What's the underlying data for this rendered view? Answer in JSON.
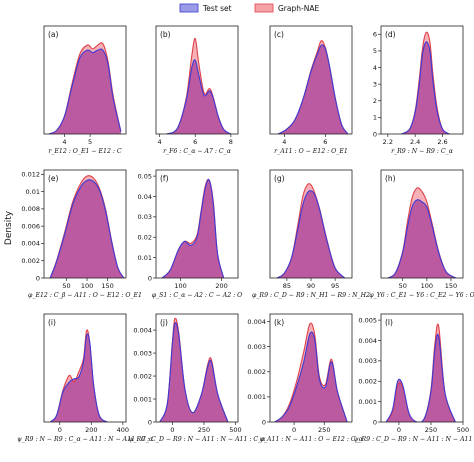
{
  "figure": {
    "ylabel": "Density",
    "legend": [
      {
        "label": "Test set",
        "stroke": "#3b3bd6",
        "fill": "#9a9ae6"
      },
      {
        "label": "Graph-NAE",
        "stroke": "#e0404a",
        "fill": "#f3a3a8"
      }
    ],
    "overlap_color": "#b04a9e"
  },
  "chart_data": [
    {
      "type": "area",
      "panel_label": "(a)",
      "xlabel": "r_E12 : O_E1 − E12 : C",
      "xlim": [
        3.2,
        6.4
      ],
      "ylim": [
        0,
        0.85
      ],
      "xticks": [
        4,
        5
      ],
      "yticks": [],
      "x": [
        3.4,
        3.7,
        4.0,
        4.3,
        4.6,
        4.9,
        5.1,
        5.3,
        5.5,
        5.7,
        5.9,
        6.2
      ],
      "series": [
        {
          "name": "Test set",
          "values": [
            0.0,
            0.03,
            0.14,
            0.38,
            0.6,
            0.66,
            0.64,
            0.66,
            0.66,
            0.55,
            0.28,
            0.02
          ]
        },
        {
          "name": "Graph-NAE",
          "values": [
            0.0,
            0.03,
            0.14,
            0.4,
            0.63,
            0.7,
            0.67,
            0.7,
            0.71,
            0.57,
            0.3,
            0.02
          ]
        }
      ]
    },
    {
      "type": "area",
      "panel_label": "(b)",
      "xlabel": "r_F6 : C_α − A7 : C_α",
      "xlim": [
        3.8,
        8.4
      ],
      "ylim": [
        0,
        0.95
      ],
      "xticks": [
        4,
        6,
        8
      ],
      "yticks": [],
      "x": [
        4.4,
        5.0,
        5.5,
        5.8,
        6.0,
        6.2,
        6.5,
        6.8,
        7.0,
        7.3,
        7.6,
        8.0
      ],
      "series": [
        {
          "name": "Test set",
          "values": [
            0.0,
            0.05,
            0.3,
            0.58,
            0.65,
            0.52,
            0.34,
            0.38,
            0.32,
            0.15,
            0.04,
            0.0
          ]
        },
        {
          "name": "Graph-NAE",
          "values": [
            0.0,
            0.05,
            0.32,
            0.68,
            0.84,
            0.62,
            0.36,
            0.4,
            0.33,
            0.15,
            0.04,
            0.0
          ]
        }
      ]
    },
    {
      "type": "area",
      "panel_label": "(c)",
      "xlabel": "r_A11 : O − E12 : O_E1",
      "xlim": [
        3.3,
        7.3
      ],
      "ylim": [
        0,
        0.95
      ],
      "xticks": [
        4,
        6
      ],
      "yticks": [],
      "x": [
        3.7,
        4.1,
        4.5,
        4.9,
        5.3,
        5.6,
        5.8,
        6.0,
        6.2,
        6.5,
        6.8,
        7.1
      ],
      "series": [
        {
          "name": "Test set",
          "values": [
            0.0,
            0.04,
            0.12,
            0.3,
            0.55,
            0.7,
            0.78,
            0.75,
            0.6,
            0.3,
            0.08,
            0.0
          ]
        },
        {
          "name": "Graph-NAE",
          "values": [
            0.0,
            0.04,
            0.12,
            0.3,
            0.56,
            0.72,
            0.82,
            0.76,
            0.6,
            0.3,
            0.08,
            0.0
          ]
        }
      ]
    },
    {
      "type": "area",
      "panel_label": "(d)",
      "xlabel": "r_R9 : N − R9 : C_α",
      "xlim": [
        2.15,
        2.75
      ],
      "ylim": [
        0,
        6.5
      ],
      "xticks": [
        2.2,
        2.4,
        2.6
      ],
      "yticks": [
        0,
        1,
        2,
        3,
        4,
        5,
        6
      ],
      "x": [
        2.3,
        2.36,
        2.4,
        2.43,
        2.45,
        2.47,
        2.49,
        2.51,
        2.53,
        2.56,
        2.6,
        2.65
      ],
      "series": [
        {
          "name": "Test set",
          "values": [
            0.0,
            0.3,
            1.3,
            3.0,
            4.6,
            5.4,
            5.5,
            4.9,
            3.2,
            1.4,
            0.3,
            0.0
          ]
        },
        {
          "name": "Graph-NAE",
          "values": [
            0.0,
            0.3,
            1.4,
            3.3,
            4.9,
            5.9,
            6.1,
            5.4,
            3.6,
            1.6,
            0.3,
            0.0
          ]
        }
      ]
    },
    {
      "type": "area",
      "panel_label": "(e)",
      "xlabel": "φ_E12 : C_β − A11 : O − E12 : O_E1",
      "xlim": [
        -5,
        195
      ],
      "ylim": [
        0,
        0.0125
      ],
      "xticks": [
        50,
        100,
        150
      ],
      "yticks": [
        0,
        0.002,
        0.004,
        0.006,
        0.008,
        0.01,
        0.012
      ],
      "x": [
        10,
        25,
        45,
        65,
        85,
        100,
        115,
        130,
        145,
        160,
        175,
        190
      ],
      "series": [
        {
          "name": "Test set",
          "values": [
            0.0,
            0.0018,
            0.005,
            0.0085,
            0.0106,
            0.0113,
            0.0112,
            0.0102,
            0.0078,
            0.0042,
            0.0012,
            0.0
          ]
        },
        {
          "name": "Graph-NAE",
          "values": [
            0.0,
            0.0019,
            0.0052,
            0.0088,
            0.011,
            0.0118,
            0.0116,
            0.0104,
            0.008,
            0.0043,
            0.0012,
            0.0
          ]
        }
      ]
    },
    {
      "type": "area",
      "panel_label": "(f)",
      "xlabel": "φ_S1 : C_α − A2 : C − A2 : O",
      "xlim": [
        40,
        240
      ],
      "ylim": [
        0,
        0.053
      ],
      "xticks": [
        100,
        200
      ],
      "yticks": [
        0,
        0.01,
        0.02,
        0.03,
        0.04,
        0.05
      ],
      "x": [
        55,
        75,
        95,
        110,
        125,
        140,
        150,
        160,
        170,
        180,
        190,
        205
      ],
      "series": [
        {
          "name": "Test set",
          "values": [
            0.0,
            0.004,
            0.014,
            0.018,
            0.016,
            0.02,
            0.032,
            0.044,
            0.048,
            0.036,
            0.012,
            0.0
          ]
        },
        {
          "name": "Graph-NAE",
          "values": [
            0.0,
            0.004,
            0.014,
            0.018,
            0.017,
            0.021,
            0.033,
            0.045,
            0.048,
            0.037,
            0.012,
            0.0
          ]
        }
      ]
    },
    {
      "type": "area",
      "panel_label": "(g)",
      "xlabel": "φ_R9 : C_D − R9 : N_H1 − R9 : N_H2",
      "xlim": [
        81.5,
        98.5
      ],
      "ylim": [
        0,
        0.13
      ],
      "xticks": [
        85,
        90,
        95
      ],
      "yticks": [],
      "x": [
        83,
        84.5,
        86,
        87.3,
        88.3,
        89.2,
        90.0,
        90.8,
        91.8,
        93.3,
        95,
        97
      ],
      "series": [
        {
          "name": "Test set",
          "values": [
            0.0,
            0.006,
            0.025,
            0.06,
            0.088,
            0.102,
            0.105,
            0.1,
            0.082,
            0.045,
            0.012,
            0.0
          ]
        },
        {
          "name": "Graph-NAE",
          "values": [
            0.0,
            0.006,
            0.025,
            0.065,
            0.098,
            0.112,
            0.112,
            0.102,
            0.083,
            0.046,
            0.012,
            0.0
          ]
        }
      ]
    },
    {
      "type": "area",
      "panel_label": "(h)",
      "xlabel": "φ_Y6 : C_E1 − Y6 : C_E2 − Y6 : O",
      "xlim": [
        5,
        175
      ],
      "ylim": [
        0,
        0.021
      ],
      "xticks": [
        50,
        100,
        150
      ],
      "yticks": [],
      "x": [
        20,
        35,
        50,
        60,
        70,
        80,
        90,
        100,
        110,
        125,
        140,
        160
      ],
      "series": [
        {
          "name": "Test set",
          "values": [
            0.0,
            0.001,
            0.005,
            0.01,
            0.014,
            0.0152,
            0.0148,
            0.0138,
            0.0105,
            0.0048,
            0.0012,
            0.0
          ]
        },
        {
          "name": "Graph-NAE",
          "values": [
            0.0,
            0.001,
            0.0052,
            0.011,
            0.0158,
            0.0175,
            0.0168,
            0.0148,
            0.011,
            0.005,
            0.0012,
            0.0
          ]
        }
      ]
    },
    {
      "type": "area",
      "panel_label": "(i)",
      "xlabel": "ψ_R9 : N − R9 : C_α − A11 : N − A11 : C_α",
      "xlim": [
        -100,
        420
      ],
      "ylim": [
        0,
        0.0065
      ],
      "xticks": [
        0,
        200,
        400
      ],
      "yticks": [],
      "x": [
        -60,
        -20,
        20,
        60,
        90,
        120,
        150,
        170,
        190,
        215,
        250,
        300
      ],
      "series": [
        {
          "name": "Test set",
          "values": [
            0.0,
            0.0004,
            0.0018,
            0.0024,
            0.0026,
            0.0027,
            0.0036,
            0.0052,
            0.0048,
            0.0022,
            0.0004,
            0.0
          ]
        },
        {
          "name": "Graph-NAE",
          "values": [
            0.0,
            0.0004,
            0.0019,
            0.0028,
            0.0024,
            0.003,
            0.0038,
            0.0055,
            0.0048,
            0.0022,
            0.0004,
            0.0
          ]
        }
      ]
    },
    {
      "type": "area",
      "panel_label": "(j)",
      "xlabel": "ψ_R9 : C_D − R9 : N − A11 : N − A11 : C_α",
      "xlim": [
        -130,
        520
      ],
      "ylim": [
        0,
        0.0047
      ],
      "xticks": [
        0,
        250,
        500
      ],
      "yticks": [
        0,
        0.001,
        0.002,
        0.003,
        0.004
      ],
      "x": [
        -100,
        -40,
        0,
        20,
        50,
        100,
        160,
        230,
        280,
        310,
        360,
        440
      ],
      "series": [
        {
          "name": "Test set",
          "values": [
            0.0,
            0.0008,
            0.0034,
            0.0043,
            0.0038,
            0.0014,
            0.0004,
            0.0012,
            0.0024,
            0.0026,
            0.0012,
            0.0
          ]
        },
        {
          "name": "Graph-NAE",
          "values": [
            0.0,
            0.0008,
            0.0035,
            0.0045,
            0.0039,
            0.0014,
            0.0004,
            0.0012,
            0.0025,
            0.0027,
            0.0012,
            0.0
          ]
        }
      ]
    },
    {
      "type": "area",
      "panel_label": "(k)",
      "xlabel": "ψ_A11 : N − A11 : O − E12 : C_α",
      "xlim": [
        -200,
        480
      ],
      "ylim": [
        0,
        0.0043
      ],
      "xticks": [
        0,
        250
      ],
      "yticks": [
        0,
        0.001,
        0.002,
        0.003,
        0.004
      ],
      "x": [
        -160,
        -100,
        -40,
        20,
        80,
        130,
        170,
        210,
        260,
        310,
        360,
        440
      ],
      "series": [
        {
          "name": "Test set",
          "values": [
            0.0,
            0.0002,
            0.0006,
            0.0014,
            0.0024,
            0.0035,
            0.0033,
            0.0017,
            0.0014,
            0.0024,
            0.0012,
            0.0
          ]
        },
        {
          "name": "Graph-NAE",
          "values": [
            0.0,
            0.0002,
            0.0007,
            0.0016,
            0.0028,
            0.0039,
            0.0035,
            0.0018,
            0.0015,
            0.0025,
            0.0012,
            0.0
          ]
        }
      ]
    },
    {
      "type": "area",
      "panel_label": "(l)",
      "xlabel": "ψ_R9 : C_D − R9 : N − A11 : N − A11 : C_α",
      "xlim": [
        -140,
        500
      ],
      "ylim": [
        0,
        0.0053
      ],
      "xticks": [
        0,
        250,
        500
      ],
      "yticks": [
        0,
        0.001,
        0.002,
        0.003,
        0.004,
        0.005
      ],
      "x": [
        -100,
        -50,
        -10,
        30,
        80,
        140,
        200,
        250,
        280,
        310,
        360,
        440
      ],
      "series": [
        {
          "name": "Test set",
          "values": [
            0.0,
            0.0006,
            0.002,
            0.0018,
            0.0004,
            0.0,
            0.0002,
            0.0015,
            0.0035,
            0.0042,
            0.0014,
            0.0
          ]
        },
        {
          "name": "Graph-NAE",
          "values": [
            0.0,
            0.0005,
            0.0018,
            0.0017,
            0.0004,
            0.0,
            0.0002,
            0.0016,
            0.0038,
            0.0047,
            0.0014,
            0.0
          ]
        }
      ]
    }
  ]
}
